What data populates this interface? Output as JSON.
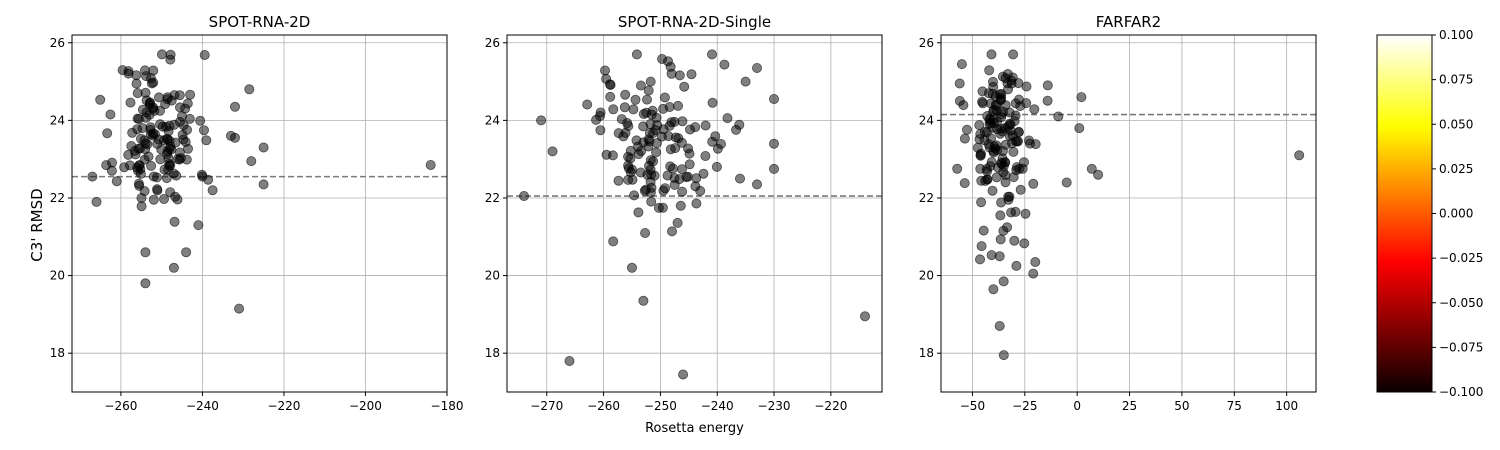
{
  "figure": {
    "y_label": "C3' RMSD",
    "x_label": "Rosetta energy"
  },
  "colorbar": {
    "colormap": "hot",
    "range": [
      -0.1,
      0.1
    ],
    "ticks": [
      "0.100",
      "0.075",
      "0.050",
      "0.025",
      "0.000",
      "−0.025",
      "−0.050",
      "−0.075",
      "−0.100"
    ],
    "tick_values": [
      0.1,
      0.075,
      0.05,
      0.025,
      0.0,
      -0.025,
      -0.05,
      -0.075,
      -0.1
    ]
  },
  "chart_data": [
    {
      "type": "scatter",
      "title": "SPOT-RNA-2D",
      "xlabel": "",
      "ylabel": "C3' RMSD",
      "xlim": [
        -272,
        -180
      ],
      "ylim": [
        17,
        26.2
      ],
      "xticks": [
        -260,
        -240,
        -220,
        -200,
        -180
      ],
      "xtick_labels": [
        "−260",
        "−240",
        "−220",
        "−200",
        "−180"
      ],
      "yticks": [
        18,
        20,
        22,
        24,
        26
      ],
      "ytick_labels": [
        "18",
        "20",
        "22",
        "24",
        "26"
      ],
      "grid": true,
      "point_color": "#000000",
      "reference_line_y": 22.55,
      "outliers": [
        [
          -184,
          22.85
        ],
        [
          -231,
          19.15
        ],
        [
          -228.5,
          24.8
        ],
        [
          -225,
          23.3
        ],
        [
          -225,
          22.35
        ],
        [
          -228,
          22.95
        ],
        [
          -267,
          22.55
        ],
        [
          -266,
          21.9
        ],
        [
          -254,
          19.8
        ],
        [
          -254,
          20.6
        ],
        [
          -247,
          20.2
        ],
        [
          -244,
          20.6
        ],
        [
          -241,
          21.3
        ],
        [
          -237.5,
          22.2
        ],
        [
          -232,
          24.35
        ],
        [
          -232,
          23.55
        ],
        [
          -233,
          23.6
        ]
      ],
      "cluster": {
        "center": [
          -251,
          23.6
        ],
        "spread": [
          5,
          1.05
        ],
        "count": 145,
        "seed": 11
      }
    },
    {
      "type": "scatter",
      "title": "SPOT-RNA-2D-Single",
      "xlabel": "Rosetta energy",
      "ylabel": "",
      "xlim": [
        -277,
        -211
      ],
      "ylim": [
        17,
        26.2
      ],
      "xticks": [
        -270,
        -260,
        -250,
        -240,
        -230,
        -220
      ],
      "xtick_labels": [
        "−270",
        "−260",
        "−250",
        "−240",
        "−230",
        "−220"
      ],
      "yticks": [
        18,
        20,
        22,
        24,
        26
      ],
      "ytick_labels": [
        "18",
        "20",
        "22",
        "24",
        "26"
      ],
      "grid": true,
      "point_color": "#000000",
      "reference_line_y": 22.05,
      "outliers": [
        [
          -274,
          22.05
        ],
        [
          -214,
          18.95
        ],
        [
          -230,
          24.55
        ],
        [
          -230,
          23.4
        ],
        [
          -230,
          22.75
        ],
        [
          -266,
          17.8
        ],
        [
          -246,
          17.45
        ],
        [
          -253,
          19.35
        ],
        [
          -255,
          20.2
        ],
        [
          -271,
          24.0
        ],
        [
          -269,
          23.2
        ],
        [
          -235,
          25.0
        ],
        [
          -233,
          25.35
        ],
        [
          -236,
          22.5
        ],
        [
          -233,
          22.35
        ]
      ],
      "cluster": {
        "center": [
          -251,
          23.4
        ],
        "spread": [
          5.5,
          1.05
        ],
        "count": 140,
        "seed": 27
      }
    },
    {
      "type": "scatter",
      "title": "FARFAR2",
      "xlabel": "",
      "ylabel": "",
      "xlim": [
        -65,
        114
      ],
      "ylim": [
        17,
        26.2
      ],
      "xticks": [
        -50,
        -25,
        0,
        25,
        50,
        75,
        100
      ],
      "xtick_labels": [
        "−50",
        "−25",
        "0",
        "25",
        "50",
        "75",
        "100"
      ],
      "yticks": [
        18,
        20,
        22,
        24,
        26
      ],
      "ytick_labels": [
        "18",
        "20",
        "22",
        "24",
        "26"
      ],
      "grid": true,
      "point_color": "#000000",
      "reference_line_y": 24.15,
      "outliers": [
        [
          106,
          23.1
        ],
        [
          7,
          22.75
        ],
        [
          10,
          22.6
        ],
        [
          2,
          24.6
        ],
        [
          1,
          23.8
        ],
        [
          -5,
          22.4
        ],
        [
          -35,
          17.95
        ],
        [
          -37,
          18.7
        ],
        [
          -40,
          19.65
        ],
        [
          -37,
          20.5
        ],
        [
          -20,
          20.35
        ],
        [
          -21,
          20.05
        ],
        [
          -29,
          20.25
        ],
        [
          -55,
          25.45
        ],
        [
          -56,
          24.5
        ],
        [
          -14,
          24.9
        ],
        [
          -9,
          24.1
        ]
      ],
      "cluster": {
        "center": [
          -36,
          23.4
        ],
        "spread": [
          8,
          1.25
        ],
        "count": 150,
        "seed": 53
      }
    }
  ]
}
